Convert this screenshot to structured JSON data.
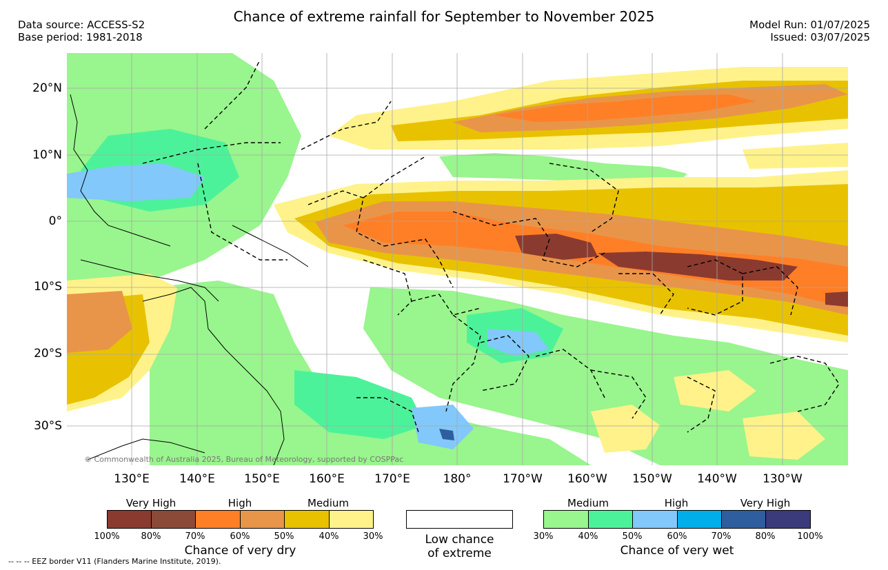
{
  "title": "Chance of extreme rainfall for September to November 2025",
  "header_left": {
    "data_source": "Data source: ACCESS-S2",
    "base_period": "Base period: 1981-2018"
  },
  "header_right": {
    "model_run": "Model Run: 01/07/2025",
    "issued": "Issued: 03/07/2025"
  },
  "lat_labels": [
    "20°N",
    "10°N",
    "0°",
    "10°S",
    "20°S",
    "30°S"
  ],
  "lon_labels": [
    "130°E",
    "140°E",
    "150°E",
    "160°E",
    "170°E",
    "180°",
    "170°W",
    "160°W",
    "150°W",
    "140°W",
    "130°W"
  ],
  "copyright": "© Commonwealth of Australia 2025, Bureau of Meteorology, supported by COSPPac",
  "legend_dry": {
    "levels": [
      "Very High",
      "High",
      "Medium"
    ],
    "ticks": [
      "100%",
      "80%",
      "70%",
      "60%",
      "50%",
      "40%",
      "30%"
    ],
    "colors": [
      "#8b3a2f",
      "#8b4a38",
      "#ff7f27",
      "#e8954a",
      "#e8c200",
      "#fff28a"
    ],
    "label": "Chance of very dry"
  },
  "legend_low": {
    "line1": "Low chance",
    "line2": "of extreme"
  },
  "legend_wet": {
    "levels": [
      "Medium",
      "High",
      "Very High"
    ],
    "ticks": [
      "30%",
      "40%",
      "50%",
      "60%",
      "70%",
      "80%",
      "100%"
    ],
    "colors": [
      "#99f58d",
      "#4cf29a",
      "#82c8fa",
      "#00aeea",
      "#2e5e9e",
      "#3b3a7a"
    ],
    "label": "Chance of very wet"
  },
  "eez_note": "-- -- -- EEZ border V11 (Flanders Marine Institute, 2019)."
}
